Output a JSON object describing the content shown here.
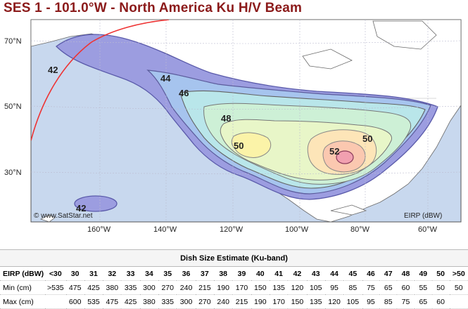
{
  "title": "SES 1 - 101.0°W - North America Ku H/V Beam",
  "map": {
    "lat_labels": [
      "70°N",
      "50°N",
      "30°N"
    ],
    "lon_labels": [
      "160°W",
      "140°W",
      "120°W",
      "100°W",
      "80°W",
      "60°W"
    ],
    "contour_labels": [
      "42",
      "44",
      "46",
      "48",
      "50",
      "52",
      "50",
      "42"
    ],
    "credit": "© www.SatStar.net",
    "units": "EIRP (dBW)"
  },
  "dish_table": {
    "caption": "Dish Size Estimate (Ku-band)",
    "headers": [
      "EIRP (dBW)",
      "<30",
      "30",
      "31",
      "32",
      "33",
      "34",
      "35",
      "36",
      "37",
      "38",
      "39",
      "40",
      "41",
      "42",
      "43",
      "44",
      "45",
      "46",
      "47",
      "48",
      "49",
      "50",
      ">50"
    ],
    "rows": [
      [
        "Min (cm)",
        ">535",
        "475",
        "425",
        "380",
        "335",
        "300",
        "270",
        "240",
        "215",
        "190",
        "170",
        "150",
        "135",
        "120",
        "105",
        "95",
        "85",
        "75",
        "65",
        "60",
        "55",
        "50",
        "50"
      ],
      [
        "Max (cm)",
        "",
        "600",
        "535",
        "475",
        "425",
        "380",
        "335",
        "300",
        "270",
        "240",
        "215",
        "190",
        "170",
        "150",
        "135",
        "120",
        "105",
        "95",
        "85",
        "75",
        "65",
        "60",
        ""
      ]
    ]
  }
}
